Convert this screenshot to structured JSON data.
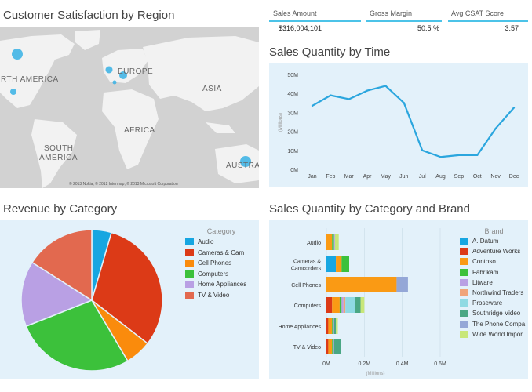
{
  "map": {
    "title": "Customer Satisfaction by Region",
    "labels": {
      "north_america": "RTH AMERICA",
      "europe": "EUROPE",
      "asia": "ASIA",
      "africa": "AFRICA",
      "south_america_1": "SOUTH",
      "south_america_2": "AMERICA",
      "australia": "AUSTRAL"
    },
    "copyright": "© 2013 Nokia, © 2012 Intermap, © 2013 Microsoft Corporation"
  },
  "kpis": [
    {
      "label": "Sales Amount",
      "value": "$316,004,101"
    },
    {
      "label": "Gross Margin",
      "value": "50.5 %"
    },
    {
      "label": "Avg CSAT Score",
      "value": "3.57"
    }
  ],
  "line_chart": {
    "title": "Sales Quantity by Time"
  },
  "pie_chart": {
    "title": "Revenue by Category"
  },
  "bar_chart": {
    "title": "Sales Quantity by Category and Brand"
  },
  "chart_data": [
    {
      "type": "line",
      "title": "Sales Quantity by Time",
      "categories": [
        "Jan",
        "Feb",
        "Mar",
        "Apr",
        "May",
        "Jun",
        "Jul",
        "Aug",
        "Sep",
        "Oct",
        "Nov",
        "Dec"
      ],
      "values": [
        33.5,
        39,
        37,
        41.5,
        44,
        35,
        10,
        6.5,
        7.5,
        7.5,
        21.5,
        32.5
      ],
      "ylabel": "(Millions)",
      "yticks": [
        "0M",
        "10M",
        "20M",
        "30M",
        "40M",
        "50M"
      ],
      "ylim": [
        0,
        50
      ],
      "color": "#2ba6de",
      "grid": false
    },
    {
      "type": "pie",
      "title": "Revenue by Category",
      "legend_title": "Category",
      "legend_position": "right",
      "slices": [
        {
          "name": "Audio",
          "value": 4.5,
          "color": "#17a6e1"
        },
        {
          "name": "Cameras & Camcorders",
          "display": "Cameras & Cam",
          "value": 31,
          "color": "#dc3a17"
        },
        {
          "name": "Cell Phones",
          "value": 6,
          "color": "#fa8b0c"
        },
        {
          "name": "Computers",
          "value": 27.5,
          "color": "#3cc13b"
        },
        {
          "name": "Home Appliances",
          "value": 15,
          "color": "#b9a0e4"
        },
        {
          "name": "TV & Video",
          "value": 16,
          "color": "#e2694f"
        }
      ]
    },
    {
      "type": "bar",
      "orientation": "horizontal",
      "stacked": true,
      "title": "Sales Quantity by Category and Brand",
      "categories": [
        "Audio",
        "Cameras & Camcorders",
        "Cell Phones",
        "Computers",
        "Home Appliances",
        "TV & Video"
      ],
      "category_display": [
        [
          "Audio"
        ],
        [
          "Cameras &",
          "Camcorders"
        ],
        [
          "Cell Phones"
        ],
        [
          "Computers"
        ],
        [
          "Home Appliances"
        ],
        [
          "TV & Video"
        ]
      ],
      "xlabel": "(Millions)",
      "xticks": [
        "0M",
        "0.2M",
        "0.4M",
        "0.6M"
      ],
      "xlim": [
        0,
        0.6
      ],
      "legend_title": "Brand",
      "legend_position": "right",
      "series": [
        {
          "name": "A. Datum",
          "color": "#17a6e1",
          "values": [
            0,
            0.05,
            0,
            0,
            0,
            0
          ]
        },
        {
          "name": "Adventure Works",
          "color": "#dc3a17",
          "values": [
            0,
            0,
            0,
            0.03,
            0.01,
            0.01
          ]
        },
        {
          "name": "Contoso",
          "color": "#fa9a14",
          "values": [
            0.03,
            0.03,
            0.37,
            0.04,
            0.02,
            0.02
          ]
        },
        {
          "name": "Fabrikam",
          "color": "#3cc13b",
          "values": [
            0.01,
            0.04,
            0,
            0.01,
            0.005,
            0.005
          ]
        },
        {
          "name": "Litware",
          "color": "#b9a0e4",
          "values": [
            0.005,
            0,
            0,
            0.01,
            0.005,
            0.005
          ]
        },
        {
          "name": "Northwind Traders",
          "color": "#f0a47a",
          "values": [
            0,
            0,
            0,
            0.01,
            0,
            0
          ]
        },
        {
          "name": "Proseware",
          "color": "#8fdae3",
          "values": [
            0,
            0,
            0,
            0.05,
            0,
            0
          ]
        },
        {
          "name": "Southridge Video",
          "color": "#4aa784",
          "values": [
            0,
            0,
            0,
            0.03,
            0.01,
            0.035
          ]
        },
        {
          "name": "The Phone Company",
          "display": "The Phone Compa",
          "color": "#94a7d7",
          "values": [
            0,
            0,
            0.06,
            0,
            0,
            0
          ]
        },
        {
          "name": "Wide World Importers",
          "display": "Wide World Impor",
          "color": "#c8e77a",
          "values": [
            0.02,
            0,
            0,
            0.02,
            0.01,
            0
          ]
        }
      ]
    }
  ]
}
